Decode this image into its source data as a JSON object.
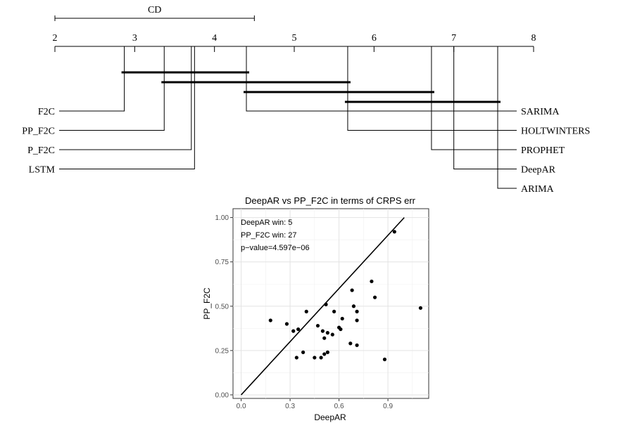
{
  "cd_diagram": {
    "type": "critical-difference",
    "cd_label": "CD",
    "cd_value": 2.5,
    "axis_ticks": [
      "2",
      "3",
      "4",
      "5",
      "6",
      "7",
      "8"
    ],
    "axis_range": [
      2,
      8
    ],
    "methods_left": [
      {
        "name": "F2C",
        "rank": 2.87
      },
      {
        "name": "PP_F2C",
        "rank": 3.37
      },
      {
        "name": "P_F2C",
        "rank": 3.71
      },
      {
        "name": "LSTM",
        "rank": 3.75
      }
    ],
    "methods_right": [
      {
        "name": "SARIMA",
        "rank": 4.4
      },
      {
        "name": "HOLTWINTERS",
        "rank": 5.67
      },
      {
        "name": "PROPHET",
        "rank": 6.72
      },
      {
        "name": "DeepAR",
        "rank": 7.0
      },
      {
        "name": "ARIMA",
        "rank": 7.55
      }
    ],
    "cliques": [
      [
        2.87,
        4.4
      ],
      [
        3.37,
        5.67
      ],
      [
        4.4,
        6.72
      ],
      [
        5.67,
        7.55
      ]
    ]
  },
  "chart_data": {
    "type": "scatter",
    "title": "DeepAR vs PP_F2C in terms of CRPS err",
    "xlabel": "DeepAR",
    "ylabel": "PP_F2C",
    "xlim": [
      -0.05,
      1.15
    ],
    "ylim": [
      -0.02,
      1.05
    ],
    "x_ticks": [
      "0.0",
      "0.3",
      "0.6",
      "0.9"
    ],
    "y_ticks": [
      "0.00",
      "0.25",
      "0.50",
      "0.75",
      "1.00"
    ],
    "grid": true,
    "annotations": [
      "DeepAR win: 5",
      "PP_F2C win: 27",
      "p−value=4.597e−06"
    ],
    "diagonal": [
      [
        0,
        0
      ],
      [
        1,
        1
      ]
    ],
    "points": [
      {
        "x": 0.94,
        "y": 0.92
      },
      {
        "x": 0.8,
        "y": 0.64
      },
      {
        "x": 0.82,
        "y": 0.55
      },
      {
        "x": 1.1,
        "y": 0.49
      },
      {
        "x": 0.68,
        "y": 0.59
      },
      {
        "x": 0.69,
        "y": 0.5
      },
      {
        "x": 0.71,
        "y": 0.47
      },
      {
        "x": 0.71,
        "y": 0.42
      },
      {
        "x": 0.52,
        "y": 0.51
      },
      {
        "x": 0.57,
        "y": 0.47
      },
      {
        "x": 0.62,
        "y": 0.43
      },
      {
        "x": 0.4,
        "y": 0.47
      },
      {
        "x": 0.18,
        "y": 0.42
      },
      {
        "x": 0.28,
        "y": 0.4
      },
      {
        "x": 0.32,
        "y": 0.36
      },
      {
        "x": 0.35,
        "y": 0.37
      },
      {
        "x": 0.47,
        "y": 0.39
      },
      {
        "x": 0.5,
        "y": 0.36
      },
      {
        "x": 0.51,
        "y": 0.32
      },
      {
        "x": 0.53,
        "y": 0.35
      },
      {
        "x": 0.56,
        "y": 0.34
      },
      {
        "x": 0.6,
        "y": 0.38
      },
      {
        "x": 0.61,
        "y": 0.37
      },
      {
        "x": 0.67,
        "y": 0.29
      },
      {
        "x": 0.71,
        "y": 0.28
      },
      {
        "x": 0.38,
        "y": 0.24
      },
      {
        "x": 0.53,
        "y": 0.24
      },
      {
        "x": 0.34,
        "y": 0.21
      },
      {
        "x": 0.45,
        "y": 0.21
      },
      {
        "x": 0.49,
        "y": 0.21
      },
      {
        "x": 0.51,
        "y": 0.23
      },
      {
        "x": 0.88,
        "y": 0.2
      }
    ]
  }
}
